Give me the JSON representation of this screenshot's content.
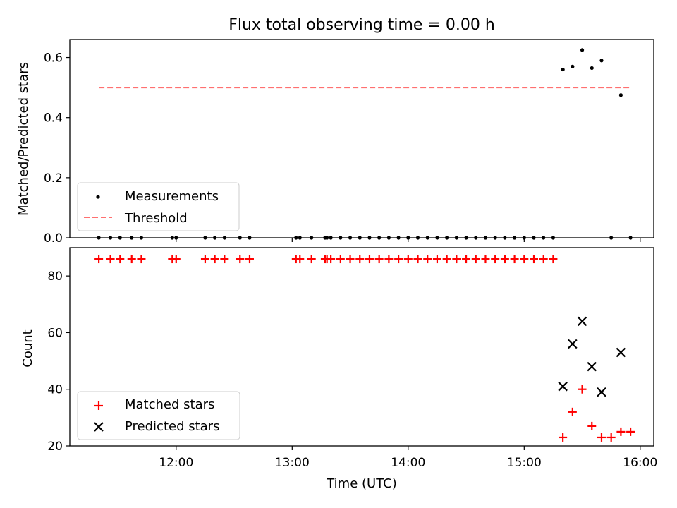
{
  "figure": {
    "title": "Flux total observing time = 0.00 h",
    "xlabel": "Time (UTC)"
  },
  "chart_data": [
    {
      "type": "scatter",
      "panel": "top",
      "title": "Flux total observing time = 0.00 h",
      "xlabel": "",
      "ylabel": "Matched/Predicted stars",
      "xlim": [
        "11:05",
        "16:07"
      ],
      "ylim": [
        0,
        0.66
      ],
      "yticks": [
        0.0,
        0.2,
        0.4,
        0.6
      ],
      "ytick_labels": [
        "0.0",
        "0.2",
        "0.4",
        "0.6"
      ],
      "grid": false,
      "legend": {
        "position": "lower-left",
        "entries": [
          "Measurements",
          "Threshold"
        ]
      },
      "series": [
        {
          "name": "Measurements",
          "marker": "dot",
          "color": "#000000",
          "points": [
            [
              "11:20",
              0
            ],
            [
              "11:26",
              0
            ],
            [
              "11:31",
              0
            ],
            [
              "11:37",
              0
            ],
            [
              "11:42",
              0
            ],
            [
              "11:58",
              0
            ],
            [
              "12:00",
              0
            ],
            [
              "12:15",
              0
            ],
            [
              "12:20",
              0
            ],
            [
              "12:25",
              0
            ],
            [
              "12:33",
              0
            ],
            [
              "12:38",
              0
            ],
            [
              "13:02",
              0
            ],
            [
              "13:04",
              0
            ],
            [
              "13:10",
              0
            ],
            [
              "13:17",
              0
            ],
            [
              "13:18",
              0
            ],
            [
              "13:20",
              0
            ],
            [
              "13:25",
              0
            ],
            [
              "13:30",
              0
            ],
            [
              "13:35",
              0
            ],
            [
              "13:40",
              0
            ],
            [
              "13:45",
              0
            ],
            [
              "13:50",
              0
            ],
            [
              "13:55",
              0
            ],
            [
              "14:00",
              0
            ],
            [
              "14:05",
              0
            ],
            [
              "14:10",
              0
            ],
            [
              "14:15",
              0
            ],
            [
              "14:20",
              0
            ],
            [
              "14:25",
              0
            ],
            [
              "14:30",
              0
            ],
            [
              "14:35",
              0
            ],
            [
              "14:40",
              0
            ],
            [
              "14:45",
              0
            ],
            [
              "14:50",
              0
            ],
            [
              "14:55",
              0
            ],
            [
              "15:00",
              0
            ],
            [
              "15:05",
              0
            ],
            [
              "15:10",
              0
            ],
            [
              "15:15",
              0
            ],
            [
              "15:20",
              0.56
            ],
            [
              "15:25",
              0.57
            ],
            [
              "15:30",
              0.625
            ],
            [
              "15:35",
              0.565
            ],
            [
              "15:40",
              0.59
            ],
            [
              "15:45",
              0
            ],
            [
              "15:50",
              0.475
            ],
            [
              "15:55",
              0
            ]
          ]
        },
        {
          "name": "Threshold",
          "style": "dashed",
          "color": "#ff7070",
          "points": [
            [
              "11:20",
              0.5
            ],
            [
              "15:55",
              0.5
            ]
          ]
        }
      ]
    },
    {
      "type": "scatter",
      "panel": "bottom",
      "xlabel": "Time (UTC)",
      "ylabel": "Count",
      "xlim": [
        "11:05",
        "16:07"
      ],
      "ylim": [
        20,
        90
      ],
      "yticks": [
        20,
        40,
        60,
        80
      ],
      "ytick_labels": [
        "20",
        "40",
        "60",
        "80"
      ],
      "xticks": [
        "12:00",
        "13:00",
        "14:00",
        "15:00",
        "16:00"
      ],
      "xtick_labels": [
        "12:00",
        "13:00",
        "14:00",
        "15:00",
        "16:00"
      ],
      "grid": false,
      "legend": {
        "position": "lower-left",
        "entries": [
          "Matched stars",
          "Predicted stars"
        ]
      },
      "series": [
        {
          "name": "Matched stars",
          "marker": "plus",
          "color": "#ff0000",
          "points": [
            [
              "11:20",
              86
            ],
            [
              "11:26",
              86
            ],
            [
              "11:31",
              86
            ],
            [
              "11:37",
              86
            ],
            [
              "11:42",
              86
            ],
            [
              "11:58",
              86
            ],
            [
              "12:00",
              86
            ],
            [
              "12:15",
              86
            ],
            [
              "12:20",
              86
            ],
            [
              "12:25",
              86
            ],
            [
              "12:33",
              86
            ],
            [
              "12:38",
              86
            ],
            [
              "13:02",
              86
            ],
            [
              "13:04",
              86
            ],
            [
              "13:10",
              86
            ],
            [
              "13:17",
              86
            ],
            [
              "13:18",
              86
            ],
            [
              "13:20",
              86
            ],
            [
              "13:25",
              86
            ],
            [
              "13:30",
              86
            ],
            [
              "13:35",
              86
            ],
            [
              "13:40",
              86
            ],
            [
              "13:45",
              86
            ],
            [
              "13:50",
              86
            ],
            [
              "13:55",
              86
            ],
            [
              "14:00",
              86
            ],
            [
              "14:05",
              86
            ],
            [
              "14:10",
              86
            ],
            [
              "14:15",
              86
            ],
            [
              "14:20",
              86
            ],
            [
              "14:25",
              86
            ],
            [
              "14:30",
              86
            ],
            [
              "14:35",
              86
            ],
            [
              "14:40",
              86
            ],
            [
              "14:45",
              86
            ],
            [
              "14:50",
              86
            ],
            [
              "14:55",
              86
            ],
            [
              "15:00",
              86
            ],
            [
              "15:05",
              86
            ],
            [
              "15:10",
              86
            ],
            [
              "15:15",
              86
            ],
            [
              "15:20",
              23
            ],
            [
              "15:25",
              32
            ],
            [
              "15:30",
              40
            ],
            [
              "15:35",
              27
            ],
            [
              "15:40",
              23
            ],
            [
              "15:45",
              23
            ],
            [
              "15:50",
              25
            ],
            [
              "15:55",
              25
            ]
          ]
        },
        {
          "name": "Predicted stars",
          "marker": "x",
          "color": "#000000",
          "points": [
            [
              "15:20",
              41
            ],
            [
              "15:25",
              56
            ],
            [
              "15:30",
              64
            ],
            [
              "15:35",
              48
            ],
            [
              "15:40",
              39
            ],
            [
              "15:50",
              53
            ]
          ]
        }
      ]
    }
  ]
}
